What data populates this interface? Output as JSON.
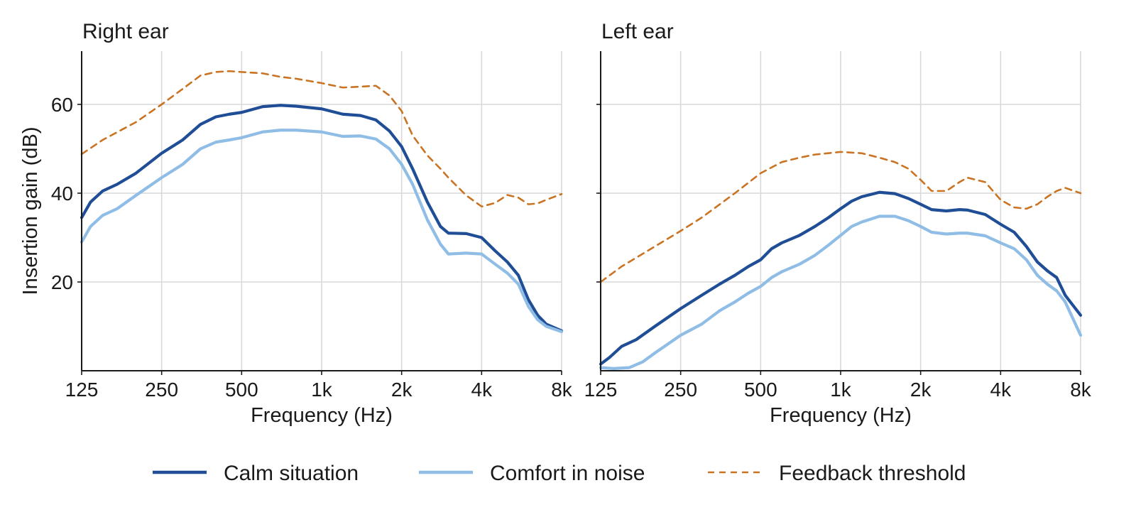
{
  "chart_data": [
    {
      "type": "line",
      "title": "Right ear",
      "xlabel": "Frequency (Hz)",
      "ylabel": "Insertion gain (dB)",
      "x_scale": "log2",
      "xlim": [
        125,
        8000
      ],
      "ylim": [
        0,
        72
      ],
      "x_ticks": [
        125,
        250,
        500,
        1000,
        2000,
        4000,
        8000
      ],
      "x_tick_labels": [
        "125",
        "250",
        "500",
        "1k",
        "2k",
        "4k",
        "8k"
      ],
      "y_ticks": [
        20,
        40,
        60
      ],
      "y_tick_labels": [
        "20",
        "40",
        "60"
      ],
      "grid": true,
      "series": [
        {
          "name": "Calm situation",
          "color": "#1f4e96",
          "style": "solid",
          "x": [
            125,
            135,
            150,
            170,
            200,
            250,
            300,
            350,
            400,
            450,
            500,
            600,
            700,
            800,
            1000,
            1200,
            1400,
            1600,
            1800,
            2000,
            2200,
            2500,
            2800,
            3000,
            3500,
            4000,
            4500,
            5000,
            5500,
            6000,
            6500,
            7000,
            8000
          ],
          "y": [
            34.5,
            38,
            40.5,
            42,
            44.5,
            49,
            52,
            55.5,
            57.2,
            57.8,
            58.2,
            59.5,
            59.8,
            59.6,
            59,
            57.8,
            57.5,
            56.5,
            54,
            50.5,
            45.5,
            38,
            32.5,
            31,
            30.9,
            30,
            27,
            24.5,
            21.5,
            16,
            12.5,
            10.5,
            9
          ]
        },
        {
          "name": "Comfort in noise",
          "color": "#8fbde6",
          "style": "solid",
          "x": [
            125,
            135,
            150,
            170,
            200,
            250,
            300,
            350,
            400,
            450,
            500,
            600,
            700,
            800,
            1000,
            1200,
            1400,
            1600,
            1800,
            2000,
            2200,
            2500,
            2800,
            3000,
            3500,
            4000,
            4500,
            5000,
            5500,
            6000,
            6500,
            7000,
            8000
          ],
          "y": [
            29,
            32.5,
            35,
            36.5,
            39.5,
            43.5,
            46.5,
            50,
            51.5,
            52,
            52.5,
            53.8,
            54.2,
            54.2,
            53.8,
            52.8,
            52.9,
            52.2,
            50,
            46.5,
            42,
            34,
            28.5,
            26.3,
            26.5,
            26.3,
            24,
            22,
            19.5,
            14.5,
            11.5,
            10,
            8.8
          ]
        },
        {
          "name": "Feedback threshold",
          "color": "#c97323",
          "style": "dashed",
          "x": [
            125,
            150,
            200,
            250,
            300,
            350,
            400,
            450,
            500,
            600,
            700,
            800,
            1000,
            1200,
            1400,
            1600,
            1800,
            2000,
            2200,
            2500,
            2800,
            3000,
            3500,
            4000,
            4500,
            5000,
            5500,
            6000,
            6500,
            7000,
            8000
          ],
          "y": [
            48.8,
            52,
            56,
            60,
            63.5,
            66.5,
            67.3,
            67.5,
            67.3,
            67,
            66.2,
            65.8,
            64.8,
            63.8,
            64,
            64.2,
            62,
            58.5,
            53,
            48.5,
            45.5,
            43.5,
            39.5,
            37,
            37.8,
            39.6,
            39,
            37.5,
            37.7,
            38.5,
            39.8
          ]
        }
      ]
    },
    {
      "type": "line",
      "title": "Left ear",
      "xlabel": "Frequency (Hz)",
      "ylabel": "",
      "x_scale": "log2",
      "xlim": [
        125,
        8000
      ],
      "ylim": [
        0,
        72
      ],
      "x_ticks": [
        125,
        250,
        500,
        1000,
        2000,
        4000,
        8000
      ],
      "x_tick_labels": [
        "125",
        "250",
        "500",
        "1k",
        "2k",
        "4k",
        "8k"
      ],
      "y_ticks": [
        20,
        40,
        60
      ],
      "y_tick_labels": [],
      "grid": true,
      "series": [
        {
          "name": "Calm situation",
          "color": "#1f4e96",
          "style": "solid",
          "x": [
            125,
            135,
            150,
            170,
            200,
            250,
            300,
            350,
            400,
            450,
            500,
            550,
            600,
            700,
            800,
            900,
            1000,
            1100,
            1200,
            1400,
            1600,
            1800,
            2000,
            2200,
            2500,
            2800,
            3000,
            3500,
            4000,
            4500,
            5000,
            5500,
            6000,
            6500,
            7000,
            8000
          ],
          "y": [
            1.5,
            3,
            5.5,
            7,
            10,
            14,
            17,
            19.5,
            21.5,
            23.5,
            25,
            27.5,
            28.8,
            30.5,
            32.5,
            34.5,
            36.5,
            38.2,
            39.2,
            40.2,
            39.9,
            38.8,
            37.5,
            36.3,
            36,
            36.3,
            36.2,
            35.2,
            33,
            31.2,
            28,
            24.5,
            22.5,
            21,
            17,
            12.5
          ]
        },
        {
          "name": "Comfort in noise",
          "color": "#8fbde6",
          "style": "solid",
          "x": [
            125,
            140,
            160,
            180,
            200,
            250,
            300,
            350,
            400,
            450,
            500,
            550,
            600,
            700,
            800,
            900,
            1000,
            1100,
            1200,
            1400,
            1600,
            1800,
            2000,
            2200,
            2500,
            2800,
            3000,
            3500,
            4000,
            4500,
            5000,
            5500,
            6000,
            6500,
            7000,
            8000
          ],
          "y": [
            0.7,
            0.5,
            0.7,
            2,
            4,
            8,
            10.5,
            13.5,
            15.5,
            17.5,
            19,
            21,
            22.3,
            24,
            26,
            28.3,
            30.5,
            32.5,
            33.5,
            34.8,
            34.8,
            33.8,
            32.5,
            31.2,
            30.8,
            31,
            31,
            30.4,
            28.8,
            27.5,
            25,
            21.5,
            19.5,
            18,
            15.5,
            8
          ]
        },
        {
          "name": "Feedback threshold",
          "color": "#c97323",
          "style": "dashed",
          "x": [
            125,
            150,
            200,
            250,
            300,
            400,
            500,
            600,
            700,
            800,
            1000,
            1200,
            1400,
            1600,
            1800,
            2000,
            2200,
            2500,
            2800,
            3000,
            3500,
            4000,
            4500,
            5000,
            5500,
            6000,
            6500,
            7000,
            8000
          ],
          "y": [
            20,
            23.5,
            28,
            31.5,
            34.5,
            40,
            44.5,
            47,
            48,
            48.7,
            49.3,
            49,
            48,
            47,
            45.5,
            43,
            40.5,
            40.5,
            42.5,
            43.5,
            42.5,
            38.5,
            36.8,
            36.5,
            37.5,
            39.2,
            40.5,
            41.2,
            40
          ]
        }
      ]
    }
  ],
  "legend": {
    "placement": "bottom-center",
    "items": [
      {
        "label": "Calm situation",
        "color": "#1f4e96",
        "style": "solid"
      },
      {
        "label": "Comfort in noise",
        "color": "#8fbde6",
        "style": "solid"
      },
      {
        "label": "Feedback threshold",
        "color": "#c97323",
        "style": "dashed"
      }
    ]
  }
}
